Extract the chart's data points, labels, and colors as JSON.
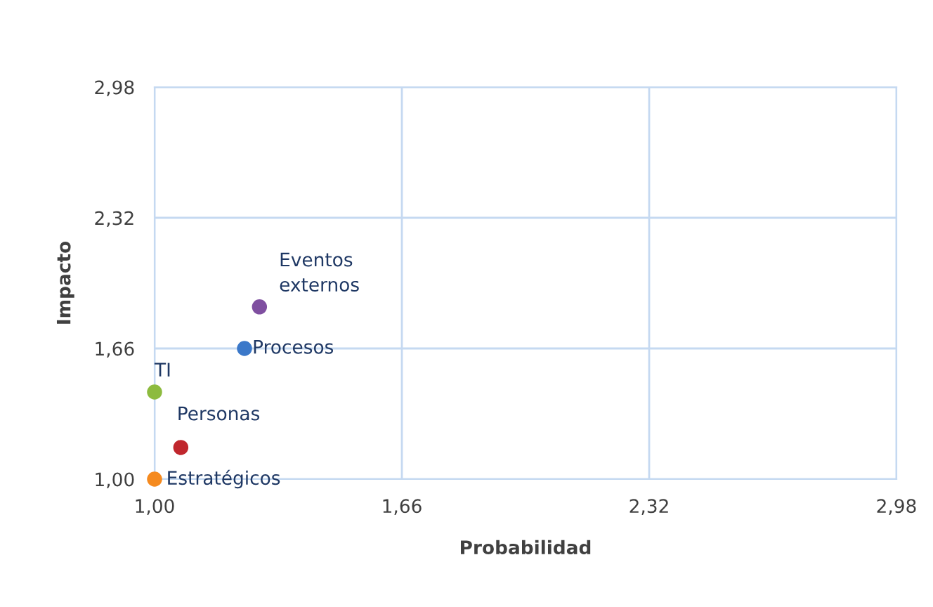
{
  "chart_data": {
    "type": "scatter",
    "xlabel": "Probabilidad",
    "ylabel": "Impacto",
    "xlim": [
      1,
      2.98
    ],
    "ylim": [
      1,
      2.98
    ],
    "xticks": [
      {
        "value": 1,
        "label": "1,00"
      },
      {
        "value": 1.66,
        "label": "1,66"
      },
      {
        "value": 2.32,
        "label": "2,32"
      },
      {
        "value": 2.98,
        "label": "2,98"
      }
    ],
    "yticks": [
      {
        "value": 1,
        "label": "1,00"
      },
      {
        "value": 1.66,
        "label": "1,66"
      },
      {
        "value": 2.32,
        "label": "2,32"
      },
      {
        "value": 2.98,
        "label": "2,98"
      }
    ],
    "grid": true,
    "marker": "circle",
    "legend": false,
    "series": [
      {
        "name": "Estratégicos",
        "color": "#f58a1f",
        "x": [
          1.0
        ],
        "values": [
          1.0
        ]
      },
      {
        "name": "Personas",
        "color": "#c0272d",
        "x": [
          1.07
        ],
        "values": [
          1.16
        ]
      },
      {
        "name": "TI",
        "color": "#8dbb3f",
        "x": [
          1.0
        ],
        "values": [
          1.44
        ]
      },
      {
        "name": "Procesos",
        "color": "#3b78c9",
        "x": [
          1.24
        ],
        "values": [
          1.66
        ]
      },
      {
        "name": "Eventos externos",
        "color": "#7f4fa0",
        "x": [
          1.28
        ],
        "values": [
          1.87
        ]
      }
    ]
  }
}
